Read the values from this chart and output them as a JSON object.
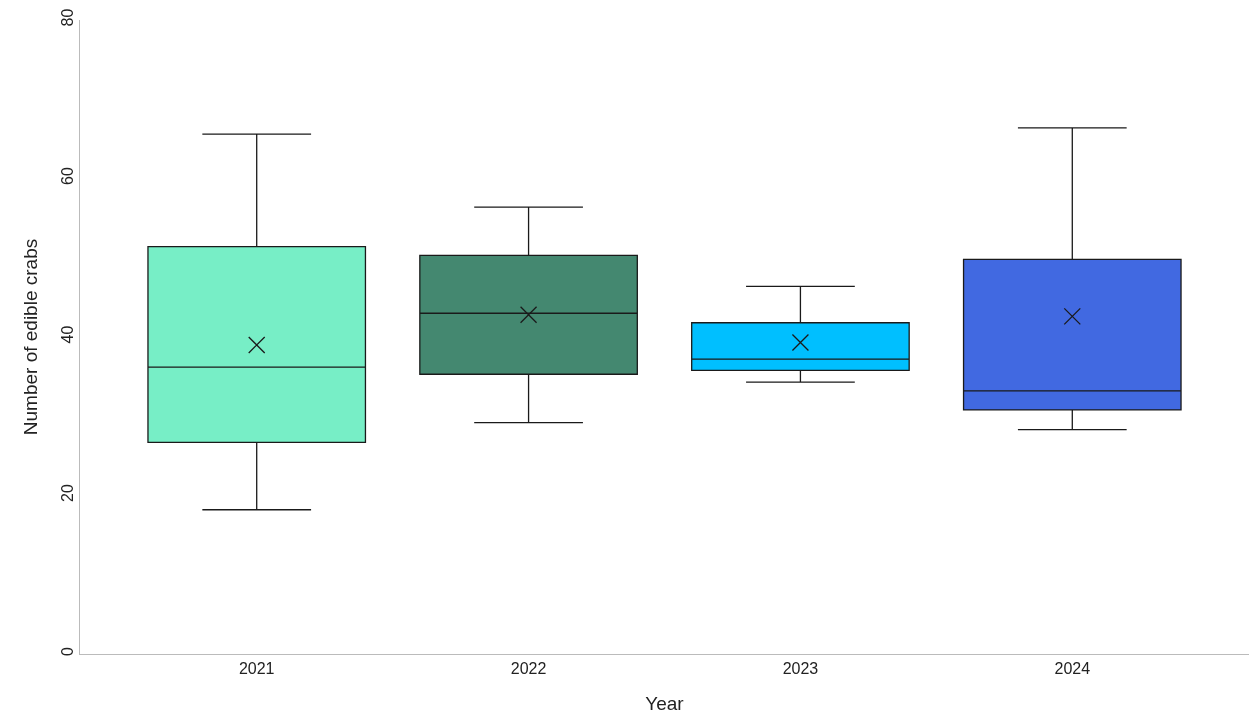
{
  "chart_data": {
    "type": "box",
    "xlabel": "Year",
    "ylabel": "Number of edible crabs",
    "categories": [
      "2021",
      "2022",
      "2023",
      "2024"
    ],
    "boxes": [
      {
        "low": 18.2,
        "q1": 26.7,
        "median": 36.2,
        "q3": 51.4,
        "high": 65.6,
        "mean": 39
      },
      {
        "low": 29.2,
        "q1": 35.3,
        "median": 43,
        "q3": 50.3,
        "high": 56.4,
        "mean": 42.8
      },
      {
        "low": 34.3,
        "q1": 35.8,
        "median": 37.2,
        "q3": 41.8,
        "high": 46.4,
        "mean": 39.3
      },
      {
        "low": 28.3,
        "q1": 30.8,
        "median": 33.2,
        "q3": 49.8,
        "high": 66.4,
        "mean": 42.6
      }
    ],
    "colors": [
      "#77eec6",
      "#448870",
      "#00bfff",
      "#4169e1"
    ],
    "ylim": [
      0,
      80
    ],
    "yticks": [
      0,
      20,
      40,
      60,
      80
    ]
  }
}
